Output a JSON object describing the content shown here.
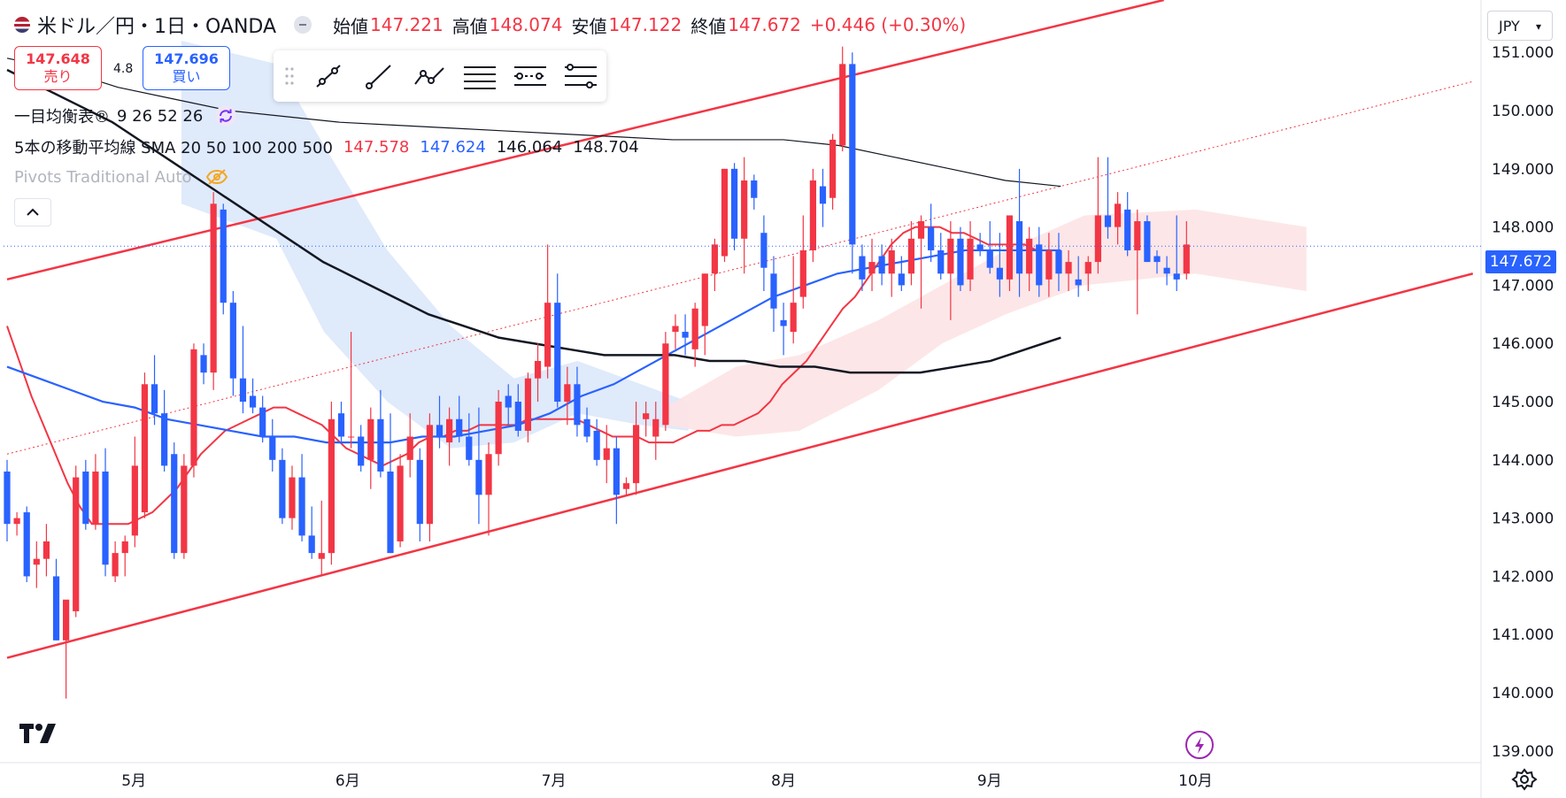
{
  "header": {
    "symbol": "米ドル／円・1日・OANDA",
    "open_label": "始値",
    "open_value": "147.221",
    "high_label": "高値",
    "high_value": "148.074",
    "low_label": "安値",
    "low_value": "147.122",
    "close_label": "終値",
    "close_value": "147.672",
    "change": "+0.446 (+0.30%)"
  },
  "trade": {
    "sell_price": "147.648",
    "sell_label": "売り",
    "spread": "4.8",
    "buy_price": "147.696",
    "buy_label": "買い"
  },
  "drawing_toolbar": {
    "tools": [
      "trend-line-icon",
      "ray-icon",
      "polyline-icon",
      "parallel-channel-icon",
      "regression-trend-icon",
      "fib-retracement-icon"
    ]
  },
  "indicators": {
    "ichimoku": {
      "name": "一目均衡表®",
      "params": "9 26 52 26"
    },
    "sma": {
      "name": "5本の移動平均線 SMA 20 50 100 200 500",
      "values": [
        "147.578",
        "147.624",
        "146.064",
        "148.704"
      ],
      "colors": [
        "#f23645",
        "#2962ff",
        "#131722",
        "#131722"
      ]
    },
    "pivots": {
      "name": "Pivots Traditional Auto"
    }
  },
  "currency_selector": {
    "value": "JPY"
  },
  "last_price_tag": "147.672",
  "colors": {
    "up": "#f23645",
    "down": "#2962ff",
    "channel": "#f23645",
    "cloud_up": "#fde3e4",
    "cloud_down": "#dbe8fb"
  },
  "chart_data": {
    "type": "candlestick",
    "y_axis": {
      "ticks": [
        "151.000",
        "150.000",
        "149.000",
        "148.000",
        "147.000",
        "146.000",
        "145.000",
        "144.000",
        "143.000",
        "142.000",
        "141.000",
        "140.000",
        "139.000"
      ],
      "range": [
        138.8,
        151.9
      ]
    },
    "x_axis": {
      "labels": [
        "5月",
        "6月",
        "7月",
        "8月",
        "9月",
        "10月"
      ]
    },
    "last_price": 147.672,
    "candles": [
      [
        143.8,
        144.0,
        142.6,
        142.9
      ],
      [
        142.9,
        143.1,
        142.7,
        143.0
      ],
      [
        143.1,
        143.2,
        141.9,
        142.0
      ],
      [
        142.2,
        142.6,
        141.8,
        142.3
      ],
      [
        142.3,
        142.9,
        142.0,
        142.6
      ],
      [
        142.0,
        142.3,
        140.9,
        140.9
      ],
      [
        140.9,
        141.5,
        139.9,
        141.6
      ],
      [
        141.4,
        143.9,
        141.3,
        143.7
      ],
      [
        143.8,
        144.0,
        142.8,
        142.9
      ],
      [
        142.9,
        144.1,
        142.8,
        143.8
      ],
      [
        143.8,
        144.2,
        142.0,
        142.2
      ],
      [
        142.0,
        142.6,
        141.9,
        142.4
      ],
      [
        142.4,
        142.7,
        142.0,
        142.6
      ],
      [
        142.7,
        144.4,
        142.5,
        143.9
      ],
      [
        143.1,
        145.5,
        143.0,
        145.3
      ],
      [
        145.3,
        145.8,
        144.6,
        144.8
      ],
      [
        144.8,
        145.2,
        143.8,
        143.9
      ],
      [
        144.1,
        144.3,
        142.3,
        142.4
      ],
      [
        142.4,
        144.1,
        142.3,
        143.9
      ],
      [
        143.9,
        146.0,
        143.7,
        145.9
      ],
      [
        145.8,
        146.0,
        145.3,
        145.5
      ],
      [
        145.5,
        148.6,
        145.2,
        148.4
      ],
      [
        148.3,
        148.4,
        146.5,
        146.7
      ],
      [
        146.7,
        146.9,
        145.1,
        145.4
      ],
      [
        145.4,
        146.3,
        144.8,
        145.0
      ],
      [
        145.1,
        145.4,
        144.8,
        144.9
      ],
      [
        144.9,
        145.1,
        144.3,
        144.4
      ],
      [
        144.4,
        144.7,
        143.8,
        144.0
      ],
      [
        144.0,
        144.2,
        142.9,
        143.0
      ],
      [
        143.0,
        143.9,
        142.8,
        143.7
      ],
      [
        143.7,
        144.1,
        142.6,
        142.7
      ],
      [
        142.7,
        143.2,
        142.3,
        142.4
      ],
      [
        142.3,
        143.3,
        142.0,
        142.4
      ],
      [
        142.4,
        145.0,
        142.2,
        144.7
      ],
      [
        144.8,
        145.0,
        144.3,
        144.4
      ],
      [
        144.4,
        146.2,
        144.2,
        144.4
      ],
      [
        144.4,
        144.6,
        143.8,
        143.9
      ],
      [
        144.0,
        144.9,
        143.5,
        144.7
      ],
      [
        144.7,
        145.2,
        143.7,
        143.8
      ],
      [
        143.8,
        144.8,
        142.4,
        142.4
      ],
      [
        142.6,
        144.1,
        142.5,
        143.9
      ],
      [
        144.0,
        144.8,
        143.7,
        144.4
      ],
      [
        144.0,
        144.2,
        142.6,
        142.9
      ],
      [
        142.9,
        144.8,
        142.6,
        144.6
      ],
      [
        144.6,
        145.1,
        144.2,
        144.4
      ],
      [
        144.3,
        144.9,
        143.9,
        144.7
      ],
      [
        144.7,
        145.1,
        144.3,
        144.4
      ],
      [
        144.4,
        144.8,
        143.9,
        144.0
      ],
      [
        144.0,
        144.9,
        142.9,
        143.4
      ],
      [
        143.4,
        144.3,
        142.7,
        144.1
      ],
      [
        144.1,
        145.2,
        143.9,
        145.0
      ],
      [
        145.1,
        145.3,
        144.6,
        144.9
      ],
      [
        145.0,
        145.3,
        144.4,
        144.5
      ],
      [
        144.5,
        145.5,
        144.3,
        145.4
      ],
      [
        145.4,
        146.0,
        145.0,
        145.7
      ],
      [
        145.6,
        147.7,
        145.4,
        146.7
      ],
      [
        146.7,
        147.2,
        144.9,
        145.0
      ],
      [
        145.0,
        145.6,
        144.6,
        145.3
      ],
      [
        145.3,
        145.6,
        144.4,
        144.6
      ],
      [
        144.7,
        144.9,
        144.3,
        144.4
      ],
      [
        144.5,
        144.7,
        143.9,
        144.0
      ],
      [
        144.0,
        144.6,
        143.6,
        144.2
      ],
      [
        144.2,
        144.4,
        142.9,
        143.4
      ],
      [
        143.5,
        143.7,
        143.4,
        143.6
      ],
      [
        143.6,
        145.0,
        143.4,
        144.6
      ],
      [
        144.7,
        145.0,
        144.4,
        144.8
      ],
      [
        144.4,
        145.0,
        144.0,
        144.7
      ],
      [
        144.6,
        146.2,
        144.5,
        146.0
      ],
      [
        146.2,
        146.5,
        145.9,
        146.3
      ],
      [
        146.2,
        146.5,
        145.8,
        146.1
      ],
      [
        145.9,
        146.7,
        145.6,
        146.6
      ],
      [
        146.3,
        147.2,
        145.8,
        147.2
      ],
      [
        147.2,
        147.8,
        146.9,
        147.7
      ],
      [
        147.5,
        149.0,
        147.4,
        149.0
      ],
      [
        149.0,
        149.1,
        147.6,
        147.8
      ],
      [
        147.8,
        149.2,
        147.2,
        148.8
      ],
      [
        148.8,
        148.9,
        148.3,
        148.5
      ],
      [
        147.9,
        148.2,
        146.9,
        147.3
      ],
      [
        147.2,
        147.5,
        146.2,
        146.6
      ],
      [
        146.4,
        146.7,
        145.8,
        146.3
      ],
      [
        146.2,
        147.5,
        146.0,
        146.7
      ],
      [
        146.8,
        148.2,
        146.6,
        147.6
      ],
      [
        147.6,
        149.0,
        147.4,
        148.8
      ],
      [
        148.7,
        149.0,
        148.0,
        148.4
      ],
      [
        148.5,
        149.6,
        148.3,
        149.5
      ],
      [
        149.4,
        151.1,
        149.3,
        150.8
      ],
      [
        150.8,
        151.0,
        147.2,
        147.7
      ],
      [
        147.5,
        147.7,
        146.9,
        147.1
      ],
      [
        147.2,
        147.8,
        146.9,
        147.4
      ],
      [
        147.5,
        147.7,
        147.0,
        147.2
      ],
      [
        147.2,
        147.8,
        146.8,
        147.6
      ],
      [
        147.2,
        147.5,
        146.9,
        147.0
      ],
      [
        147.2,
        148.1,
        147.0,
        147.8
      ],
      [
        147.8,
        148.2,
        146.6,
        148.1
      ],
      [
        148.0,
        148.4,
        147.4,
        147.6
      ],
      [
        147.6,
        147.9,
        147.1,
        147.2
      ],
      [
        147.2,
        148.1,
        146.4,
        147.8
      ],
      [
        147.8,
        148.0,
        146.9,
        147.0
      ],
      [
        147.1,
        148.1,
        146.9,
        147.8
      ],
      [
        147.7,
        147.9,
        147.5,
        147.6
      ],
      [
        147.6,
        148.1,
        147.2,
        147.3
      ],
      [
        147.3,
        147.9,
        146.8,
        147.1
      ],
      [
        147.1,
        148.2,
        146.9,
        148.2
      ],
      [
        148.1,
        149.0,
        146.8,
        147.2
      ],
      [
        147.2,
        148.0,
        146.9,
        147.8
      ],
      [
        147.7,
        148.0,
        146.8,
        147.0
      ],
      [
        147.1,
        147.9,
        146.8,
        147.6
      ],
      [
        147.6,
        147.9,
        146.9,
        147.2
      ],
      [
        147.2,
        147.6,
        146.9,
        147.4
      ],
      [
        147.1,
        147.5,
        146.8,
        147.0
      ],
      [
        147.2,
        147.5,
        146.9,
        147.4
      ],
      [
        147.4,
        149.2,
        147.2,
        148.2
      ],
      [
        148.2,
        149.2,
        147.8,
        148.0
      ],
      [
        148.0,
        148.6,
        147.7,
        148.4
      ],
      [
        148.3,
        148.6,
        147.5,
        147.6
      ],
      [
        147.6,
        148.3,
        146.5,
        148.1
      ],
      [
        148.1,
        148.2,
        147.4,
        147.4
      ],
      [
        147.5,
        147.6,
        147.2,
        147.4
      ],
      [
        147.3,
        147.5,
        147.0,
        147.2
      ],
      [
        147.2,
        148.2,
        146.9,
        147.1
      ],
      [
        147.2,
        148.1,
        147.1,
        147.7
      ]
    ],
    "sma20": [
      146.3,
      145.7,
      145.1,
      144.6,
      144.1,
      143.6,
      143.2,
      142.9,
      142.9,
      142.9,
      142.9,
      143.0,
      143.1,
      143.3,
      143.5,
      143.8,
      144.1,
      144.3,
      144.5,
      144.6,
      144.7,
      144.8,
      144.9,
      144.9,
      144.8,
      144.7,
      144.6,
      144.4,
      144.2,
      144.1,
      144.0,
      143.9,
      144.0,
      144.1,
      144.3,
      144.4,
      144.4,
      144.5,
      144.5,
      144.6,
      144.6,
      144.6,
      144.6,
      144.7,
      144.7,
      144.7,
      144.7,
      144.7,
      144.6,
      144.5,
      144.4,
      144.4,
      144.4,
      144.3,
      144.3,
      144.3,
      144.4,
      144.5,
      144.5,
      144.6,
      144.6,
      144.7,
      144.8,
      145.0,
      145.3,
      145.5,
      145.7,
      146.0,
      146.3,
      146.6,
      146.8,
      147.1,
      147.4,
      147.7,
      147.9,
      148.0,
      148.0,
      148.0,
      147.9,
      147.9,
      147.8,
      147.7,
      147.7,
      147.7,
      147.7,
      147.6,
      147.6,
      147.6
    ],
    "sma50": [
      145.6,
      145.4,
      145.2,
      145.0,
      144.9,
      144.7,
      144.6,
      144.5,
      144.4,
      144.4,
      144.3,
      144.3,
      144.3,
      144.4,
      144.4,
      144.5,
      144.6,
      144.8,
      145.1,
      145.3,
      145.6,
      145.9,
      146.2,
      146.5,
      146.8,
      147.0,
      147.2,
      147.3,
      147.4,
      147.5,
      147.6,
      147.6,
      147.6,
      147.6
    ],
    "sma200": [
      150.7,
      150.4,
      150.1,
      149.8,
      149.4,
      149.0,
      148.6,
      148.2,
      147.8,
      147.4,
      147.1,
      146.8,
      146.5,
      146.3,
      146.1,
      146.0,
      145.9,
      145.8,
      145.8,
      145.8,
      145.7,
      145.7,
      145.6,
      145.6,
      145.5,
      145.5,
      145.5,
      145.6,
      145.7,
      145.9,
      146.1
    ],
    "sma500": [
      150.9,
      150.7,
      150.4,
      150.2,
      150.0,
      149.9,
      149.8,
      149.75,
      149.7,
      149.65,
      149.6,
      149.55,
      149.5,
      149.5,
      149.5,
      149.4,
      149.2,
      149.0,
      148.8,
      148.7
    ],
    "channel": {
      "upper": [
        [
          0,
          147.1
        ],
        [
          146,
          151.9
        ]
      ],
      "lower": [
        [
          0,
          140.6
        ],
        [
          185,
          147.2
        ]
      ],
      "mid": [
        [
          0,
          144.1
        ],
        [
          185,
          150.5
        ]
      ]
    }
  }
}
